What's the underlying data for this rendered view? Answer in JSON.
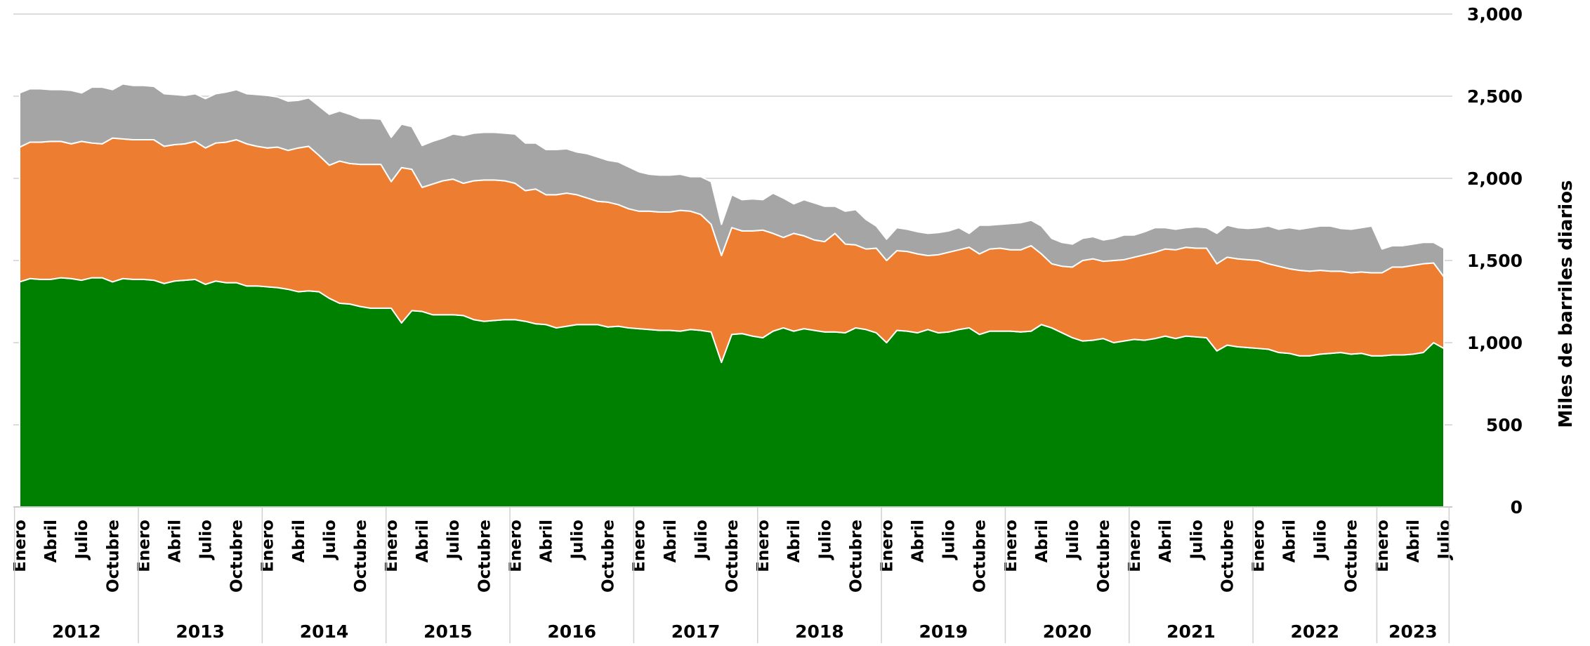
{
  "chart_data": {
    "type": "stacked_area",
    "y_label": "Miles de barriles diarios",
    "ylim": [
      0,
      3000
    ],
    "yticks": [
      0,
      500,
      {
        "value": 1000,
        "label": "1,000"
      },
      {
        "value": 1500,
        "label": "1,500"
      },
      {
        "value": 2000,
        "label": "2,000"
      },
      {
        "value": 2500,
        "label": "2,500"
      },
      {
        "value": 3000,
        "label": "3,000"
      }
    ],
    "grid": true,
    "years": [
      "2012",
      "2013",
      "2014",
      "2015",
      "2016",
      "2017",
      "2018",
      "2019",
      "2020",
      "2021",
      "2022",
      "2023"
    ],
    "categories": [
      "Enero",
      null,
      null,
      "Abril",
      null,
      null,
      "Julio",
      null,
      null,
      "Octubre",
      null,
      null,
      "Enero",
      null,
      null,
      "Abril",
      null,
      null,
      "Julio",
      null,
      null,
      "Octubre",
      null,
      null,
      "Enero",
      null,
      null,
      "Abril",
      null,
      null,
      "Julio",
      null,
      null,
      "Octubre",
      null,
      null,
      "Enero",
      null,
      null,
      "Abril",
      null,
      null,
      "Julio",
      null,
      null,
      "Octubre",
      null,
      null,
      "Enero",
      null,
      null,
      "Abril",
      null,
      null,
      "Julio",
      null,
      null,
      "Octubre",
      null,
      null,
      "Enero",
      null,
      null,
      "Abril",
      null,
      null,
      "Julio",
      null,
      null,
      "Octubre",
      null,
      null,
      "Enero",
      null,
      null,
      "Abril",
      null,
      null,
      "Julio",
      null,
      null,
      "Octubre",
      null,
      null,
      "Enero",
      null,
      null,
      "Abril",
      null,
      null,
      "Julio",
      null,
      null,
      "Octubre",
      null,
      null,
      "Enero",
      null,
      null,
      "Abril",
      null,
      null,
      "Julio",
      null,
      null,
      "Octubre",
      null,
      null,
      "Enero",
      null,
      null,
      "Abril",
      null,
      null,
      "Julio",
      null,
      null,
      "Octubre",
      null,
      null,
      "Enero",
      null,
      null,
      "Abril",
      null,
      null,
      "Julio",
      null,
      null,
      "Octubre",
      null,
      null,
      "Enero",
      null,
      null,
      "Abril",
      null,
      null,
      "Julio"
    ],
    "series": [
      {
        "color": "#008000",
        "values": [
          1370,
          1390,
          1385,
          1385,
          1395,
          1390,
          1380,
          1395,
          1395,
          1370,
          1390,
          1385,
          1385,
          1380,
          1360,
          1375,
          1380,
          1385,
          1355,
          1375,
          1365,
          1365,
          1345,
          1345,
          1340,
          1335,
          1325,
          1310,
          1315,
          1310,
          1270,
          1240,
          1235,
          1220,
          1210,
          1210,
          1210,
          1120,
          1195,
          1190,
          1170,
          1170,
          1170,
          1165,
          1140,
          1130,
          1135,
          1140,
          1140,
          1130,
          1115,
          1110,
          1090,
          1100,
          1110,
          1110,
          1110,
          1095,
          1100,
          1090,
          1085,
          1080,
          1075,
          1075,
          1070,
          1080,
          1075,
          1065,
          880,
          1050,
          1055,
          1040,
          1030,
          1070,
          1090,
          1070,
          1085,
          1075,
          1065,
          1065,
          1060,
          1090,
          1080,
          1060,
          1000,
          1075,
          1070,
          1060,
          1080,
          1060,
          1065,
          1080,
          1090,
          1050,
          1070,
          1070,
          1070,
          1065,
          1070,
          1110,
          1090,
          1060,
          1030,
          1010,
          1015,
          1025,
          1000,
          1010,
          1020,
          1015,
          1025,
          1040,
          1025,
          1040,
          1035,
          1030,
          950,
          985,
          975,
          970,
          965,
          960,
          940,
          935,
          920,
          920,
          930,
          935,
          940,
          930,
          935,
          920,
          920,
          925,
          925,
          930,
          940,
          1000,
          965
        ]
      },
      {
        "color": "#ED7D31",
        "values": [
          820,
          830,
          835,
          840,
          830,
          820,
          845,
          820,
          815,
          875,
          850,
          850,
          850,
          855,
          835,
          830,
          830,
          840,
          830,
          840,
          855,
          870,
          865,
          850,
          845,
          855,
          845,
          875,
          880,
          830,
          810,
          865,
          855,
          865,
          875,
          875,
          770,
          945,
          860,
          755,
          795,
          815,
          825,
          805,
          845,
          860,
          855,
          845,
          830,
          795,
          820,
          790,
          810,
          810,
          790,
          770,
          750,
          760,
          740,
          725,
          715,
          720,
          720,
          720,
          735,
          720,
          705,
          655,
          650,
          650,
          625,
          640,
          655,
          595,
          550,
          595,
          565,
          550,
          550,
          600,
          540,
          505,
          490,
          515,
          500,
          485,
          485,
          480,
          450,
          475,
          485,
          485,
          490,
          490,
          500,
          505,
          495,
          500,
          520,
          430,
          390,
          405,
          430,
          490,
          495,
          470,
          500,
          495,
          500,
          520,
          525,
          530,
          540,
          540,
          540,
          545,
          530,
          535,
          535,
          535,
          535,
          520,
          525,
          515,
          520,
          515,
          510,
          500,
          495,
          495,
          495,
          505,
          505,
          535,
          535,
          540,
          540,
          485,
          435
        ]
      },
      {
        "color": "#A5A5A5",
        "values": [
          330,
          325,
          325,
          315,
          315,
          325,
          295,
          340,
          345,
          295,
          335,
          330,
          330,
          325,
          320,
          305,
          295,
          290,
          300,
          300,
          305,
          305,
          305,
          315,
          320,
          305,
          300,
          290,
          295,
          300,
          310,
          305,
          300,
          280,
          280,
          275,
          270,
          265,
          260,
          255,
          260,
          260,
          275,
          290,
          290,
          290,
          290,
          290,
          300,
          290,
          280,
          275,
          275,
          270,
          260,
          270,
          270,
          255,
          260,
          255,
          240,
          225,
          225,
          225,
          220,
          210,
          230,
          260,
          190,
          200,
          190,
          195,
          185,
          245,
          240,
          180,
          220,
          225,
          215,
          165,
          200,
          215,
          180,
          135,
          130,
          140,
          135,
          135,
          135,
          135,
          130,
          135,
          85,
          175,
          145,
          145,
          160,
          165,
          155,
          170,
          155,
          145,
          140,
          135,
          135,
          130,
          135,
          150,
          135,
          140,
          150,
          130,
          125,
          120,
          130,
          125,
          185,
          195,
          190,
          190,
          200,
          230,
          225,
          250,
          250,
          265,
          270,
          275,
          260,
          265,
          270,
          285,
          145,
          130,
          130,
          130,
          130,
          125,
          175
        ]
      }
    ]
  }
}
